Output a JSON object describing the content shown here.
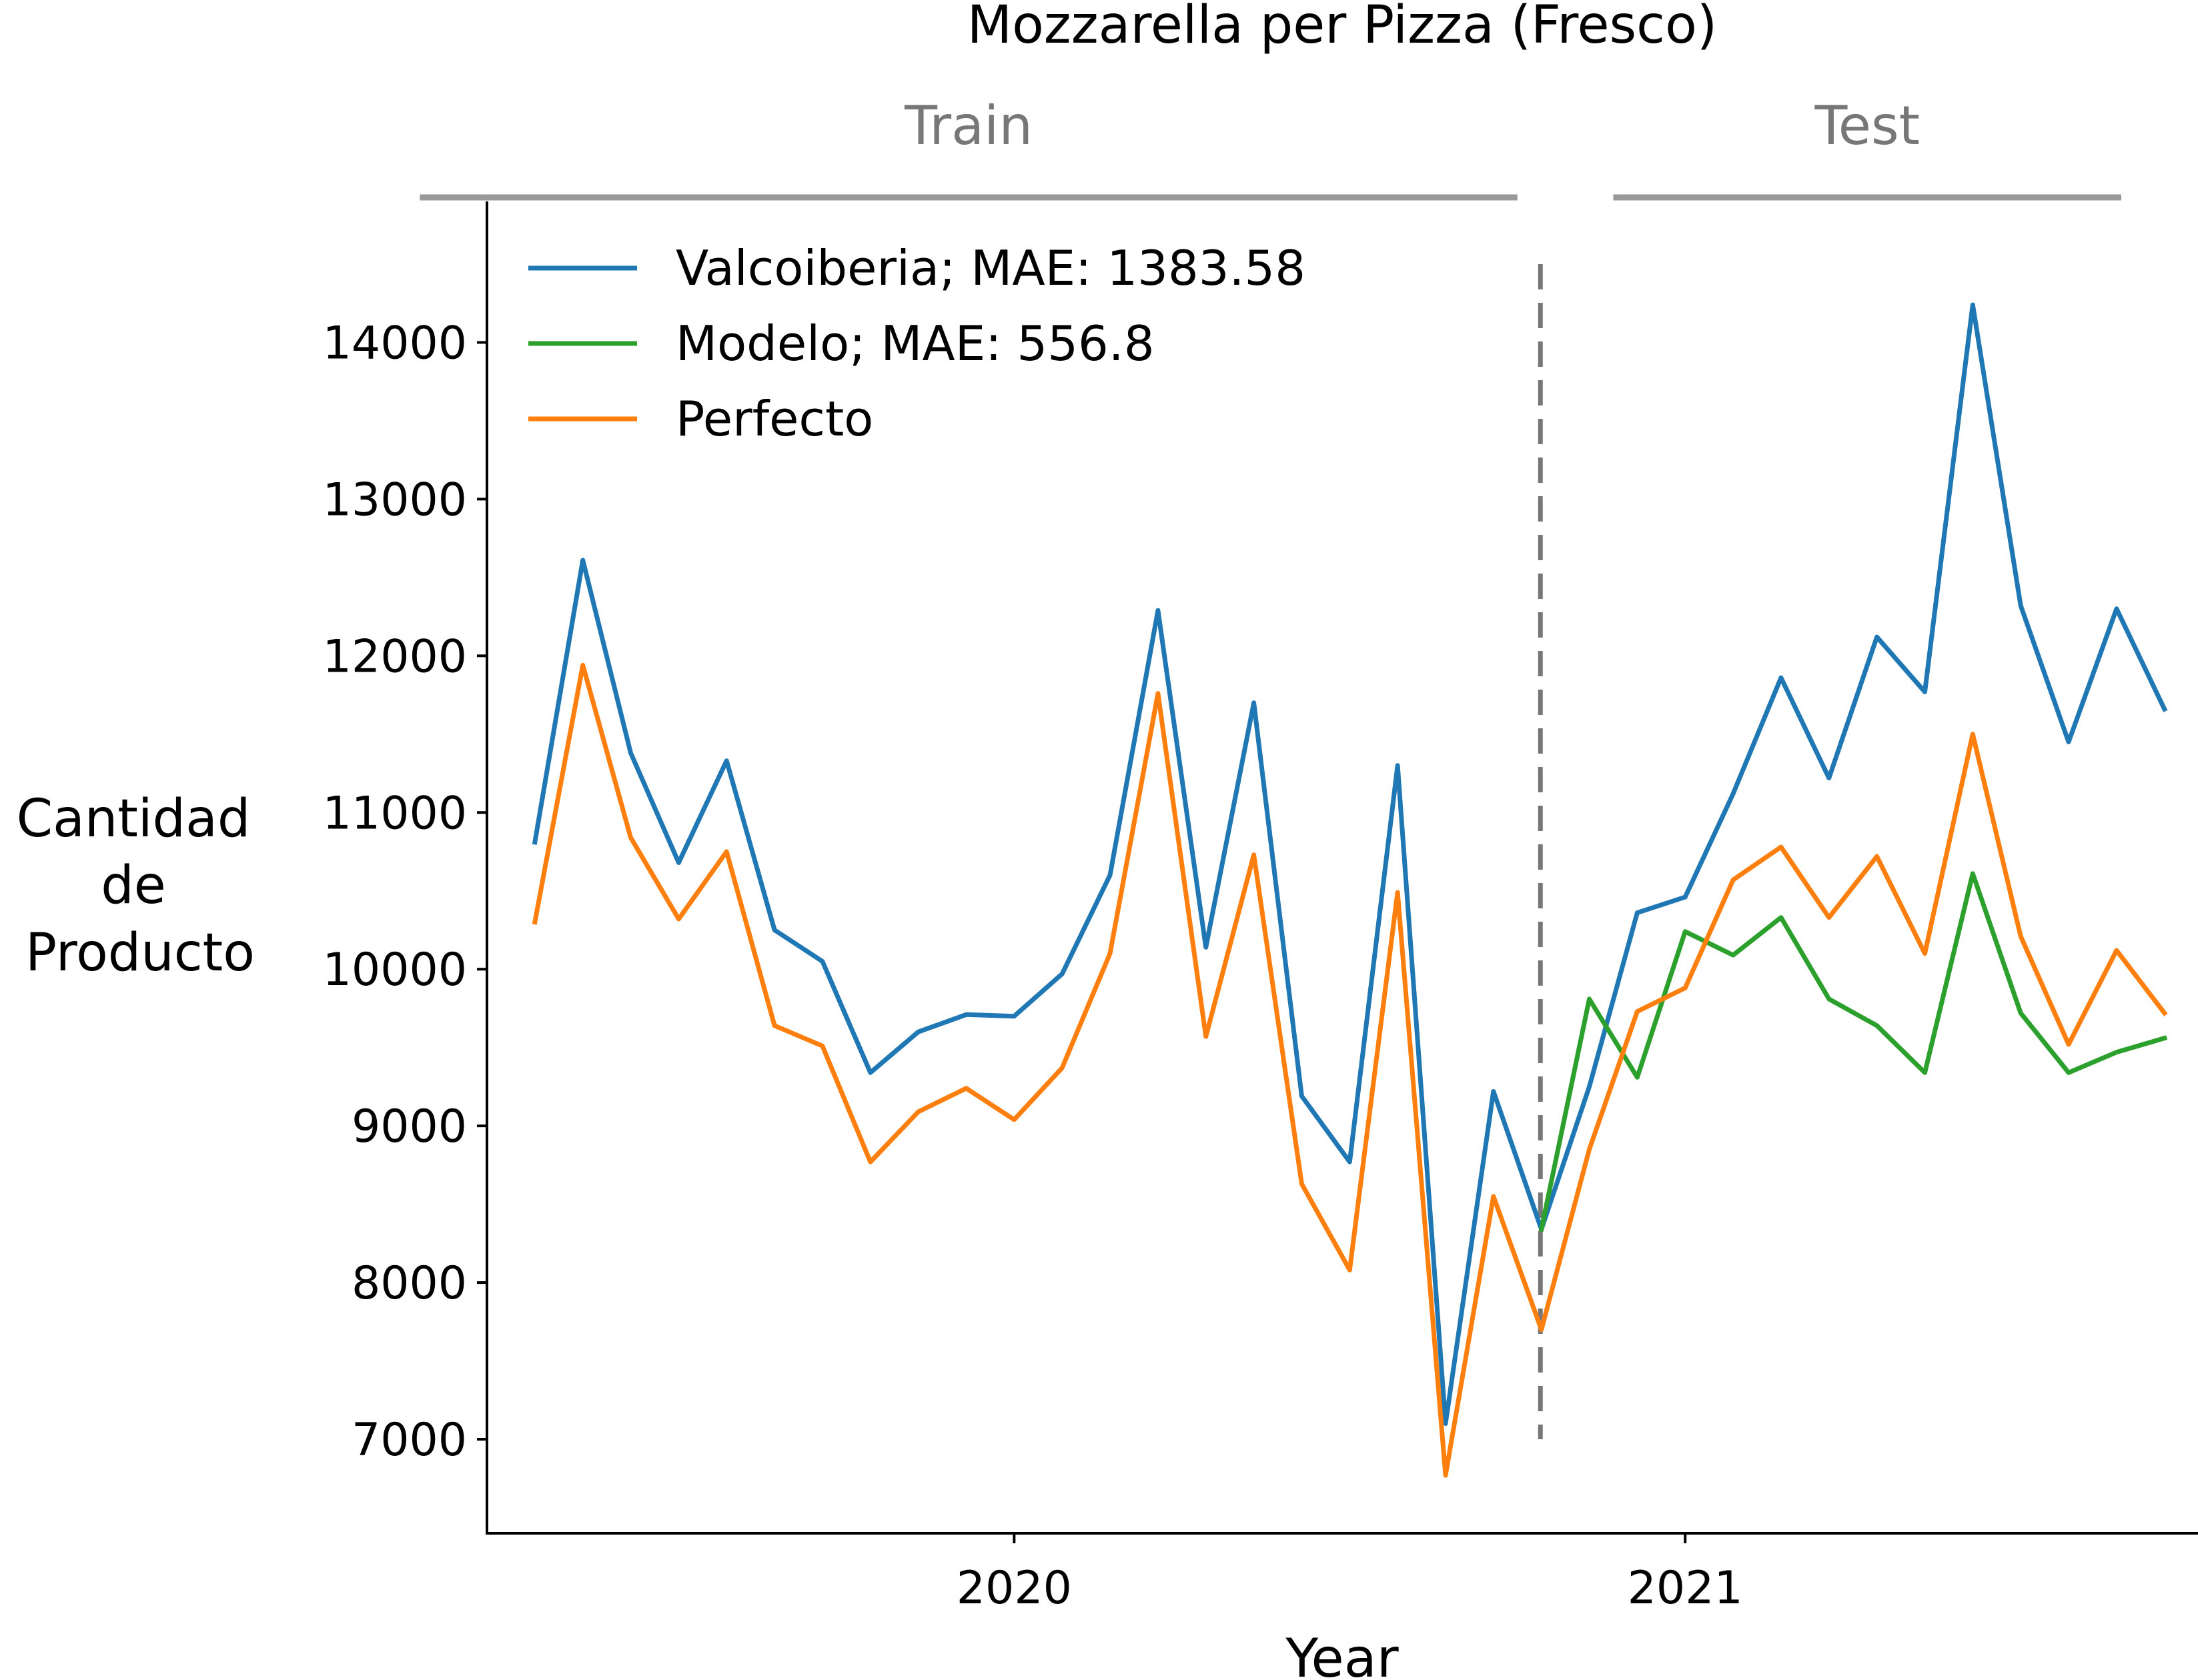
{
  "chart_data": {
    "type": "line",
    "title": "Mozzarella per Pizza (Fresco)",
    "xlabel": "Year",
    "ylabel": [
      "Cantidad",
      "de",
      "Producto"
    ],
    "ylim": [
      6400,
      14900
    ],
    "yticks": [
      7000,
      8000,
      9000,
      10000,
      11000,
      12000,
      13000,
      14000
    ],
    "xticks": [
      {
        "label": "2020",
        "x": 11
      },
      {
        "label": "2021",
        "x": 25
      }
    ],
    "xlim": [
      0,
      35.7
    ],
    "sections": [
      {
        "label": "Train",
        "x_start": -1.4,
        "x_end": 21.5
      },
      {
        "label": "Test",
        "x_start": 23.5,
        "x_end": 34.1
      }
    ],
    "split_x": 21.98,
    "split_ylim": [
      7000,
      14500
    ],
    "series": [
      {
        "name": "Valcoiberia; MAE: 1383.58",
        "color": "#1f77b4",
        "x": [
          1,
          2,
          3,
          4,
          5,
          6,
          7,
          8,
          9,
          10,
          11,
          12,
          13,
          14,
          15,
          16,
          17,
          18,
          19,
          20,
          21,
          22,
          23,
          24,
          25,
          26,
          27,
          28,
          29,
          30,
          31,
          32,
          33,
          34,
          35
        ],
        "values": [
          10810,
          12610,
          11380,
          10680,
          11330,
          10250,
          10050,
          9340,
          9600,
          9710,
          9700,
          9970,
          10600,
          12290,
          10140,
          11700,
          9190,
          8770,
          11300,
          7100,
          9220,
          8340,
          9250,
          10360,
          10460,
          11120,
          11860,
          11220,
          12120,
          11770,
          14240,
          12320,
          11450,
          12300,
          11660
        ]
      },
      {
        "name": "Modelo; MAE: 556.8",
        "color": "#2ca02c",
        "x": [
          22,
          23,
          24,
          25,
          26,
          27,
          28,
          29,
          30,
          31,
          32,
          33,
          34,
          35
        ],
        "values": [
          8340,
          9810,
          9310,
          10240,
          10090,
          10330,
          9810,
          9640,
          9340,
          10610,
          9720,
          9340,
          9470,
          9560
        ]
      },
      {
        "name": "Perfecto",
        "color": "#ff7f0e",
        "x": [
          1,
          2,
          3,
          4,
          5,
          6,
          7,
          8,
          9,
          10,
          11,
          12,
          13,
          14,
          15,
          16,
          17,
          18,
          19,
          20,
          21,
          22,
          23,
          24,
          25,
          26,
          27,
          28,
          29,
          30,
          31,
          32,
          33,
          34,
          35
        ],
        "values": [
          10300,
          11940,
          10840,
          10320,
          10750,
          9640,
          9510,
          8770,
          9090,
          9240,
          9040,
          9370,
          10100,
          11760,
          9570,
          10730,
          8630,
          8080,
          10490,
          6770,
          8550,
          7700,
          8850,
          9730,
          9880,
          10570,
          10780,
          10330,
          10720,
          10100,
          11500,
          10210,
          9520,
          10120,
          9720
        ]
      }
    ]
  }
}
